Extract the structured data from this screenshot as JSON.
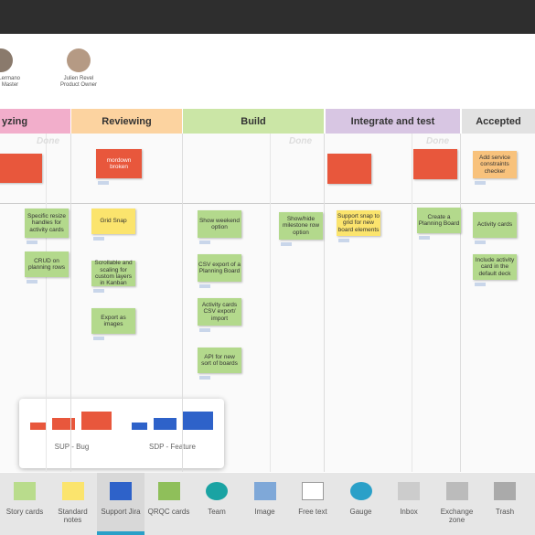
{
  "header": {
    "people": [
      {
        "name": "ud Lermano",
        "role": "um Master"
      },
      {
        "name": "Julien Revel",
        "role": "Product Owner"
      }
    ]
  },
  "board": {
    "columns": [
      "yzing",
      "Reviewing",
      "Build",
      "Integrate and test",
      "Accepted"
    ],
    "done_labels": [
      "Done",
      "Done",
      "Done"
    ],
    "cards": [
      {
        "text": "Specific resize handles for activity cards"
      },
      {
        "text": "CRUD on planning rows"
      },
      {
        "text": "mordown broken"
      },
      {
        "text": "Grid Snap"
      },
      {
        "text": "Scrollable and scaling for custom layers in Kanban"
      },
      {
        "text": "Export as images"
      },
      {
        "text": "Show weekend option"
      },
      {
        "text": "CSV export of a Planning Board"
      },
      {
        "text": "Activity cards CSV export/ import"
      },
      {
        "text": "API for new sort of boards"
      },
      {
        "text": "Show/hide milestone row option"
      },
      {
        "text": "Support snap to grid for new board elements"
      },
      {
        "text": "Create a Planning Board"
      },
      {
        "text": "Add service constraints checker"
      },
      {
        "text": "Activity cards"
      },
      {
        "text": "Include activity card in the default deck"
      }
    ]
  },
  "popup": {
    "legends": [
      "SUP - Bug",
      "SDP - Feature"
    ]
  },
  "toolbar": {
    "items": [
      "Story cards",
      "Standard notes",
      "Support Jira",
      "QRQC cards",
      "Team",
      "Image",
      "Free text",
      "Gauge",
      "Inbox",
      "Exchange zone",
      "Trash"
    ]
  }
}
